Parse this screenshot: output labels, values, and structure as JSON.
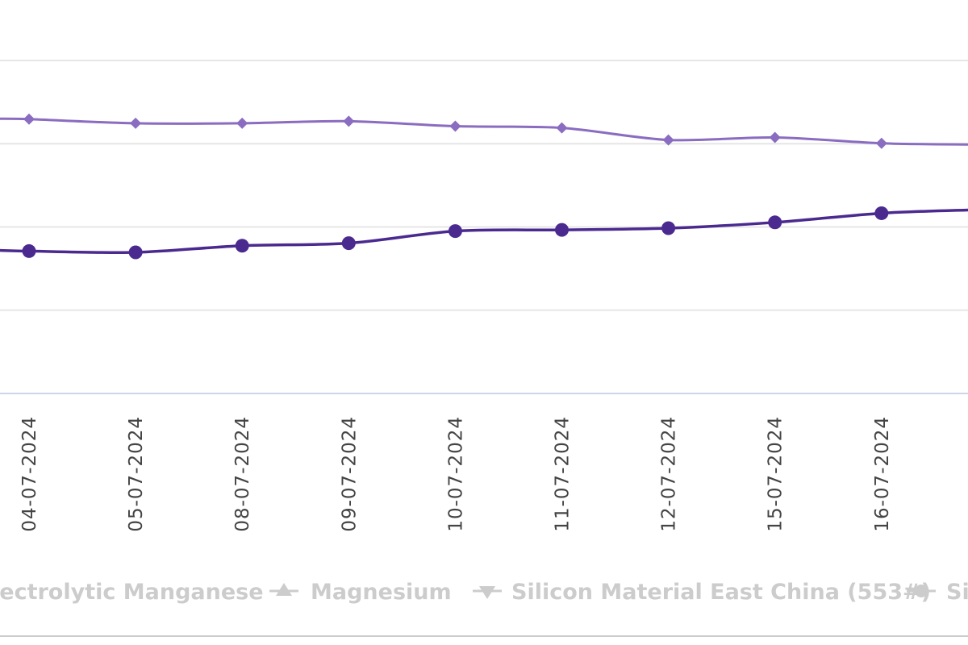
{
  "chart_data": {
    "type": "line",
    "categories": [
      "04-07-2024",
      "05-07-2024",
      "08-07-2024",
      "09-07-2024",
      "10-07-2024",
      "11-07-2024",
      "12-07-2024",
      "15-07-2024",
      "16-07-2024"
    ],
    "series": [
      {
        "color": "#8a6cc0",
        "marker": "diamond",
        "values": [
          129.5,
          124.5,
          124.5,
          127.0,
          121.0,
          119.0,
          104.5,
          107.5,
          100.5
        ],
        "edge_values": {
          "left": 130.0,
          "right": 99.0
        }
      },
      {
        "color": "#4b2a90",
        "marker": "circle",
        "values": [
          -29.0,
          -30.5,
          -22.5,
          -19.5,
          -5.0,
          -3.5,
          -1.5,
          5.5,
          16.5
        ],
        "edge_values": {
          "left": -28.0,
          "right": 20.5
        }
      }
    ],
    "gridlines": [
      200,
      100,
      0,
      -100
    ],
    "ylim": [
      -200,
      230
    ],
    "grid": true,
    "legend": {
      "placement": "bottom",
      "items": [
        {
          "name": "lectrolytic Manganese",
          "symbol": "none"
        },
        {
          "name": "Magnesium",
          "symbol": "triangle-up"
        },
        {
          "name": "Silicon Material East China (553#)",
          "symbol": "triangle-down"
        },
        {
          "name": "Sil",
          "symbol": "circle"
        }
      ]
    }
  }
}
